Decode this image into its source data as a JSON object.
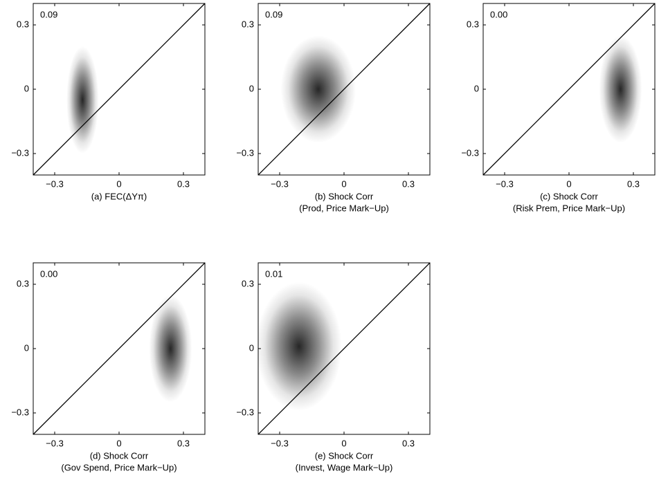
{
  "chart_data": [
    {
      "type": "density",
      "annotation": "0.09",
      "xlabel": [
        "(a) FEC(ΔYπ)"
      ],
      "center": [
        -0.17,
        -0.05
      ],
      "spread": [
        0.03,
        0.1
      ],
      "xlim": [
        -0.4,
        0.4
      ],
      "ylim": [
        -0.4,
        0.4
      ],
      "xticks": [
        {
          "value": -0.3,
          "label": "−0.3"
        },
        0,
        0.3
      ],
      "yticks": [
        {
          "value": -0.3,
          "label": "−0.3"
        },
        0,
        0.3
      ],
      "color": "#000000"
    },
    {
      "type": "density",
      "annotation": "0.09",
      "xlabel": [
        "(b) Shock Corr",
        "(Prod, Price Mark−Up)"
      ],
      "center": [
        -0.12,
        0.0
      ],
      "spread": [
        0.07,
        0.1
      ],
      "xlim": [
        -0.4,
        0.4
      ],
      "ylim": [
        -0.4,
        0.4
      ],
      "xticks": [
        {
          "value": -0.3,
          "label": "−0.3"
        },
        0,
        0.3
      ],
      "yticks": [
        {
          "value": -0.3,
          "label": "−0.3"
        },
        0,
        0.3
      ],
      "color": "#000000"
    },
    {
      "type": "density",
      "annotation": "0.00",
      "xlabel": [
        "(c) Shock Corr",
        "(Risk Prem, Price Mark−Up)"
      ],
      "center": [
        0.24,
        0.0
      ],
      "spread": [
        0.04,
        0.1
      ],
      "xlim": [
        -0.4,
        0.4
      ],
      "ylim": [
        -0.4,
        0.4
      ],
      "xticks": [
        {
          "value": -0.3,
          "label": "−0.3"
        },
        0,
        0.3
      ],
      "yticks": [
        {
          "value": -0.3,
          "label": "−0.3"
        },
        0,
        0.3
      ],
      "color": "#000000"
    },
    {
      "type": "density",
      "annotation": "0.00",
      "xlabel": [
        "(d) Shock Corr",
        "(Gov Spend, Price Mark−Up)"
      ],
      "center": [
        0.24,
        0.0
      ],
      "spread": [
        0.04,
        0.1
      ],
      "xlim": [
        -0.4,
        0.4
      ],
      "ylim": [
        -0.4,
        0.4
      ],
      "xticks": [
        {
          "value": -0.3,
          "label": "−0.3"
        },
        0,
        0.3
      ],
      "yticks": [
        {
          "value": -0.3,
          "label": "−0.3"
        },
        0,
        0.3
      ],
      "color": "#000000"
    },
    {
      "type": "density",
      "annotation": "0.01",
      "xlabel": [
        "(e) Shock Corr",
        "(Invest, Wage Mark−Up)"
      ],
      "center": [
        -0.21,
        0.01
      ],
      "spread": [
        0.08,
        0.12
      ],
      "xlim": [
        -0.4,
        0.4
      ],
      "ylim": [
        -0.4,
        0.4
      ],
      "xticks": [
        {
          "value": -0.3,
          "label": "−0.3"
        },
        0,
        0.3
      ],
      "yticks": [
        {
          "value": -0.3,
          "label": "−0.3"
        },
        0,
        0.3
      ],
      "color": "#000000"
    }
  ]
}
